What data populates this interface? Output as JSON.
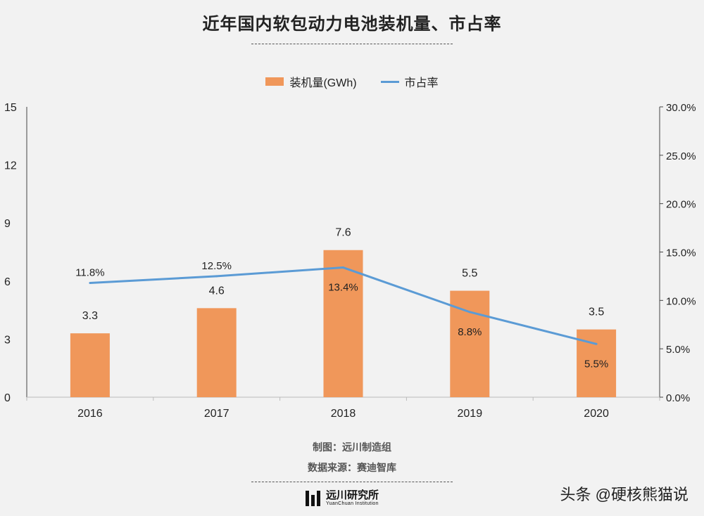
{
  "title": "近年国内软包动力电池装机量、市占率",
  "legend": {
    "bar_label": "装机量(GWh)",
    "line_label": "市占率"
  },
  "footer": {
    "maker": "制图：远川制造组",
    "source": "数据来源：赛迪智库"
  },
  "logo": {
    "name_cn": "远川研究所",
    "name_en": "YuanChuan Institution"
  },
  "watermark": "头条 @硬核熊猫说",
  "colors": {
    "bar": "#f0975a",
    "line": "#5b9bd5",
    "background": "#f2f2f2"
  },
  "chart_data": {
    "type": "bar",
    "title": "近年国内软包动力电池装机量、市占率",
    "categories": [
      "2016",
      "2017",
      "2018",
      "2019",
      "2020"
    ],
    "series": [
      {
        "name": "装机量(GWh)",
        "type": "bar",
        "axis": "left",
        "values": [
          3.3,
          4.6,
          7.6,
          5.5,
          3.5
        ],
        "labels": [
          "3.3",
          "4.6",
          "7.6",
          "5.5",
          "3.5"
        ]
      },
      {
        "name": "市占率",
        "type": "line",
        "axis": "right",
        "values": [
          11.8,
          12.5,
          13.4,
          8.8,
          5.5
        ],
        "labels": [
          "11.8%",
          "12.5%",
          "13.4%",
          "8.8%",
          "5.5%"
        ]
      }
    ],
    "y_left": {
      "ylim": [
        0,
        15
      ],
      "ticks": [
        0,
        3,
        6,
        9,
        12,
        15
      ],
      "tick_labels": [
        "0",
        "3",
        "6",
        "9",
        "12",
        "15"
      ]
    },
    "y_right": {
      "ylim": [
        0,
        30
      ],
      "ticks": [
        0,
        5,
        10,
        15,
        20,
        25,
        30
      ],
      "tick_labels": [
        "0.0%",
        "5.0%",
        "10.0%",
        "15.0%",
        "20.0%",
        "25.0%",
        "30.0%"
      ]
    },
    "grid": false,
    "legend_position": "top-center"
  }
}
